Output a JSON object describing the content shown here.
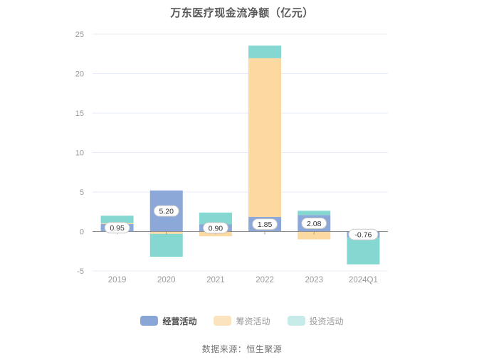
{
  "title": "万东医疗现金流净额（亿元）",
  "footer": "数据来源：恒生聚源",
  "chart_data": {
    "type": "bar",
    "stacked": true,
    "title": "万东医疗现金流净额（亿元）",
    "categories": [
      "2019",
      "2020",
      "2021",
      "2022",
      "2023",
      "2024Q1"
    ],
    "series": [
      {
        "name": "经营活动",
        "key": "operating",
        "color": "#8CA8D8",
        "values": [
          0.95,
          5.2,
          0.9,
          1.85,
          2.08,
          -0.76
        ],
        "labels": [
          "0.95",
          "5.20",
          "0.90",
          "1.85",
          "2.08",
          "-0.76"
        ]
      },
      {
        "name": "筹资活动",
        "key": "financing",
        "color": "#FBD9A1",
        "values": [
          0.1,
          -0.3,
          -0.6,
          20.1,
          -1.0,
          0.0
        ]
      },
      {
        "name": "投资活动",
        "key": "investing",
        "color": "#85D7D2",
        "values": [
          0.95,
          -2.9,
          1.5,
          1.6,
          0.55,
          -3.4
        ]
      }
    ],
    "ylim": [
      -5,
      25
    ],
    "yticks": [
      25,
      20,
      15,
      10,
      5,
      0,
      -5
    ],
    "grid": true,
    "legend_position": "bottom",
    "xlabel": "",
    "ylabel": ""
  },
  "legend": {
    "items": [
      {
        "label": "经营活动",
        "key": "operating",
        "swatch": "#8AA6D6",
        "text_color": "#4d4d4d",
        "bold": true
      },
      {
        "label": "筹资活动",
        "key": "financing",
        "swatch": "#FBE3BE",
        "text_color": "#999999",
        "bold": false
      },
      {
        "label": "投资活动",
        "key": "investing",
        "swatch": "#C6EBE9",
        "text_color": "#999999",
        "bold": false
      }
    ]
  },
  "style": {
    "grid_color": "#E6ECF5",
    "axis_line_color": "#8C8C8C",
    "tick_color": "#999999",
    "axis_label_color": "#999999",
    "value_label_color": "#333333",
    "value_label_border": "#C9C9C9",
    "value_label_bg": "#FFFFFF"
  }
}
